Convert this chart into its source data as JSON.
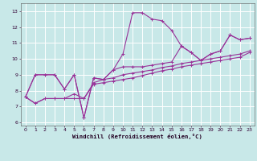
{
  "background_color": "#c8e8e8",
  "grid_color": "#ffffff",
  "line_color": "#993399",
  "xlim": [
    -0.5,
    23.5
  ],
  "ylim": [
    5.8,
    13.5
  ],
  "xticks": [
    0,
    1,
    2,
    3,
    4,
    5,
    6,
    7,
    8,
    9,
    10,
    11,
    12,
    13,
    14,
    15,
    16,
    17,
    18,
    19,
    20,
    21,
    22,
    23
  ],
  "yticks": [
    6,
    7,
    8,
    9,
    10,
    11,
    12,
    13
  ],
  "xlabel": "Windchill (Refroidissement éolien,°C)",
  "line1_x": [
    0,
    1,
    2,
    3,
    4,
    5,
    6,
    7,
    8,
    9,
    10,
    11,
    12,
    13,
    14,
    15,
    16,
    17,
    18,
    19,
    20,
    21,
    22,
    23
  ],
  "line1_y": [
    7.6,
    9.0,
    9.0,
    9.0,
    8.1,
    9.0,
    6.3,
    8.8,
    8.7,
    9.3,
    10.3,
    12.9,
    12.9,
    12.5,
    12.4,
    11.8,
    10.8,
    10.4,
    9.9,
    10.3,
    10.5,
    11.5,
    11.2,
    11.3
  ],
  "line2_x": [
    0,
    1,
    2,
    3,
    4,
    5,
    6,
    7,
    8,
    9,
    10,
    11,
    12,
    13,
    14,
    15,
    16,
    17,
    18,
    19,
    20,
    21,
    22,
    23
  ],
  "line2_y": [
    7.6,
    7.2,
    7.5,
    7.5,
    7.5,
    7.5,
    7.5,
    8.4,
    8.5,
    8.6,
    8.7,
    8.8,
    8.95,
    9.1,
    9.25,
    9.35,
    9.5,
    9.6,
    9.7,
    9.8,
    9.9,
    10.0,
    10.1,
    10.4
  ],
  "line3_x": [
    0,
    1,
    2,
    3,
    4,
    5,
    6,
    7,
    8,
    9,
    10,
    11,
    12,
    13,
    14,
    15,
    16,
    17,
    18,
    19,
    20,
    21,
    22,
    23
  ],
  "line3_y": [
    7.6,
    7.2,
    7.5,
    7.5,
    7.5,
    7.8,
    7.5,
    8.5,
    8.7,
    8.8,
    9.0,
    9.1,
    9.2,
    9.3,
    9.45,
    9.55,
    9.7,
    9.8,
    9.9,
    10.0,
    10.1,
    10.2,
    10.3,
    10.5
  ],
  "line4_x": [
    0,
    1,
    2,
    3,
    4,
    5,
    6,
    7,
    8,
    9,
    10,
    11,
    12,
    13,
    14,
    15,
    16,
    17,
    18,
    19,
    20,
    21,
    22,
    23
  ],
  "line4_y": [
    7.6,
    9.0,
    9.0,
    9.0,
    8.1,
    9.0,
    6.3,
    8.8,
    8.7,
    9.3,
    9.5,
    9.5,
    9.5,
    9.6,
    9.7,
    9.8,
    10.8,
    10.4,
    9.9,
    10.3,
    10.5,
    11.5,
    11.2,
    11.3
  ]
}
